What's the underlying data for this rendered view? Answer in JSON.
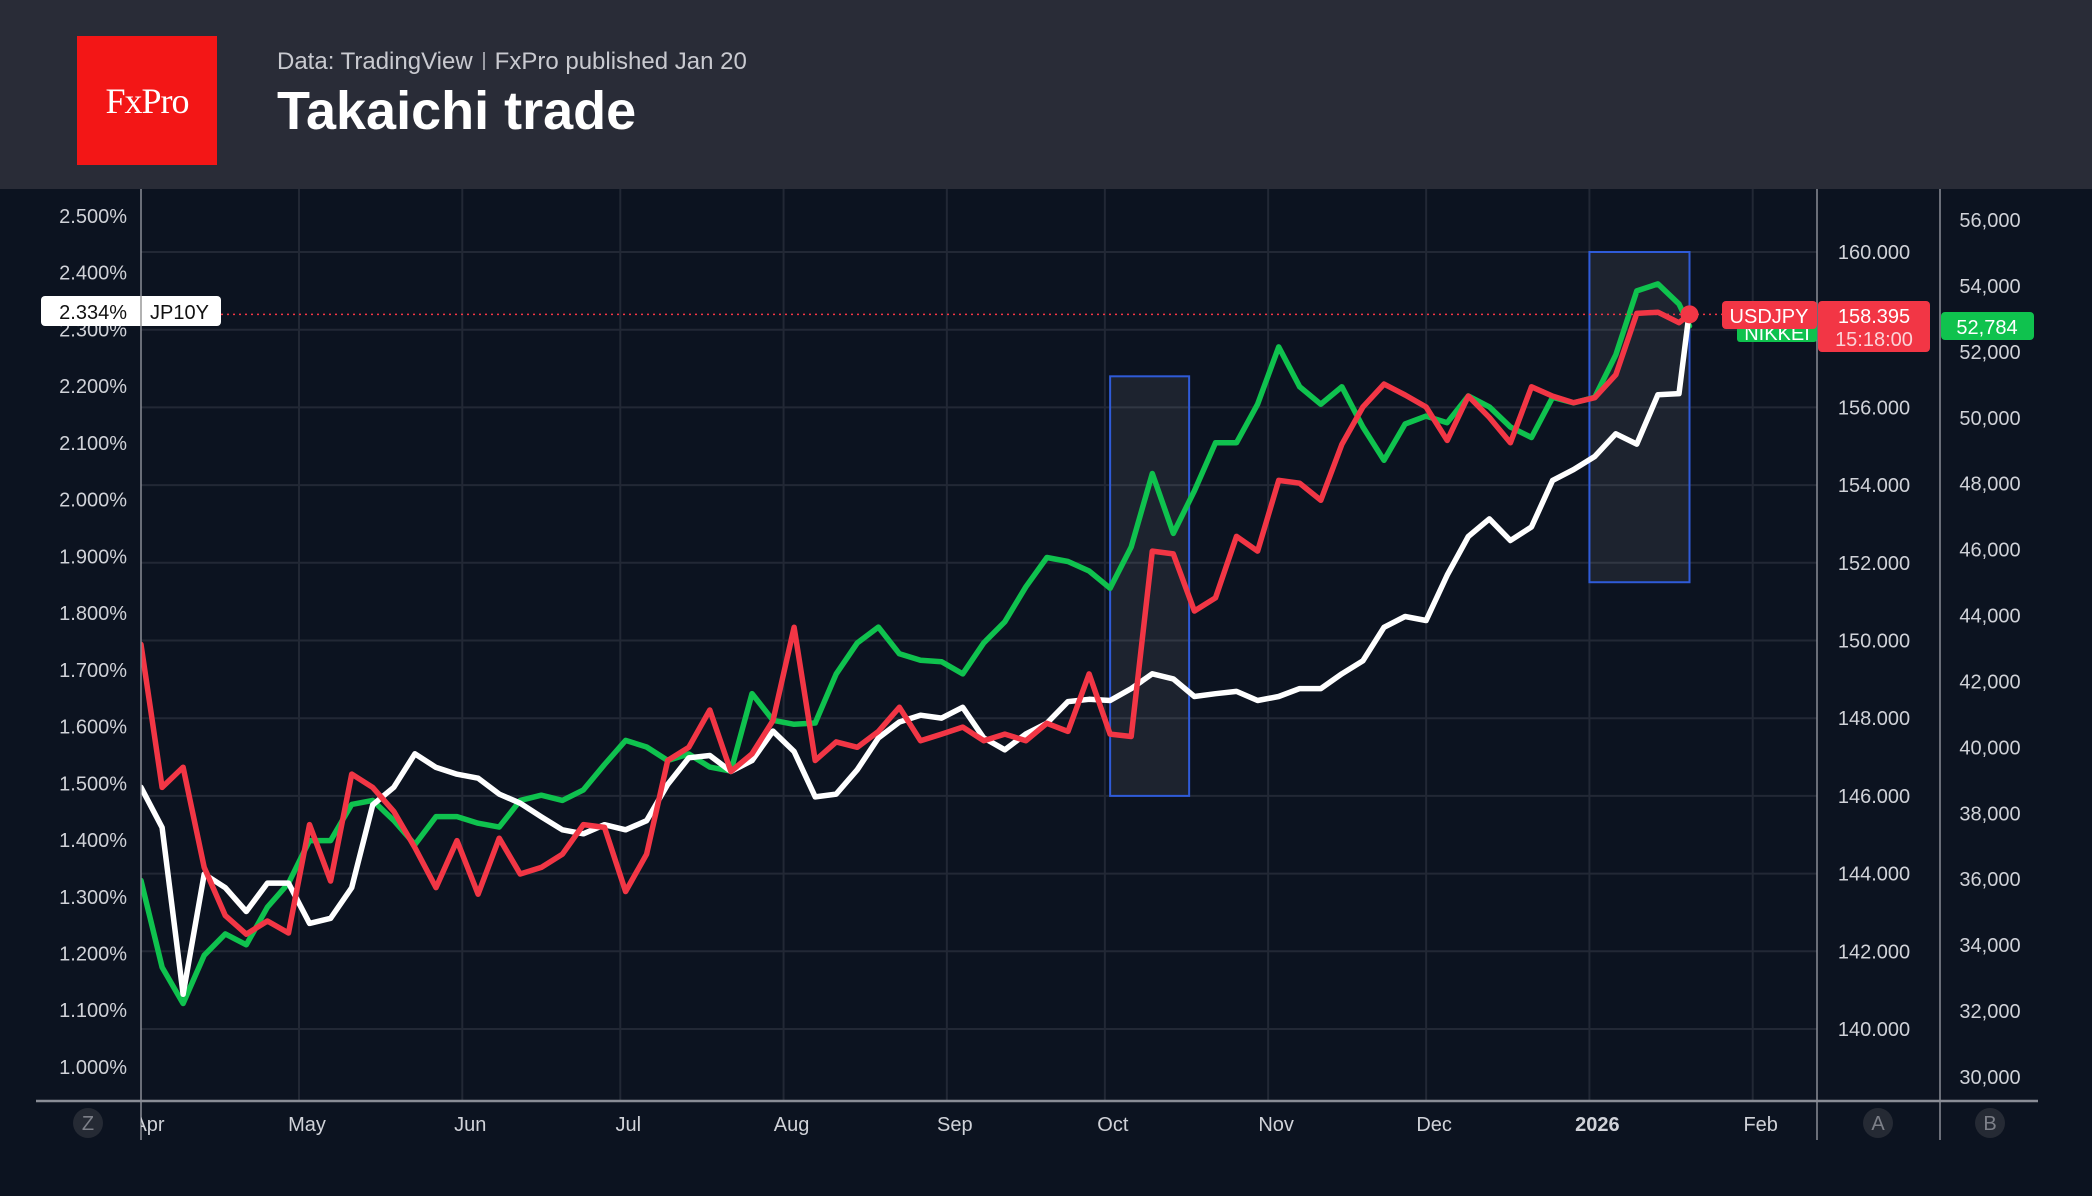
{
  "header": {
    "logo": "FxPro",
    "source": "Data: TradingView",
    "published": "FxPro published Jan 20",
    "title": "Takaichi trade"
  },
  "chart_data": {
    "type": "line",
    "title": "Takaichi trade",
    "grid": true,
    "x": [
      "2025-04-01",
      "2025-04-05",
      "2025-04-09",
      "2025-04-13",
      "2025-04-17",
      "2025-04-21",
      "2025-04-25",
      "2025-04-29",
      "2025-05-03",
      "2025-05-07",
      "2025-05-11",
      "2025-05-15",
      "2025-05-19",
      "2025-05-23",
      "2025-05-27",
      "2025-05-31",
      "2025-06-04",
      "2025-06-08",
      "2025-06-12",
      "2025-06-16",
      "2025-06-20",
      "2025-06-24",
      "2025-06-28",
      "2025-07-02",
      "2025-07-06",
      "2025-07-10",
      "2025-07-14",
      "2025-07-18",
      "2025-07-22",
      "2025-07-26",
      "2025-07-30",
      "2025-08-03",
      "2025-08-07",
      "2025-08-11",
      "2025-08-15",
      "2025-08-19",
      "2025-08-23",
      "2025-08-27",
      "2025-08-31",
      "2025-09-04",
      "2025-09-08",
      "2025-09-12",
      "2025-09-16",
      "2025-09-20",
      "2025-09-24",
      "2025-09-28",
      "2025-10-02",
      "2025-10-06",
      "2025-10-10",
      "2025-10-14",
      "2025-10-18",
      "2025-10-22",
      "2025-10-26",
      "2025-10-30",
      "2025-11-03",
      "2025-11-07",
      "2025-11-11",
      "2025-11-15",
      "2025-11-19",
      "2025-11-23",
      "2025-11-27",
      "2025-12-01",
      "2025-12-05",
      "2025-12-09",
      "2025-12-13",
      "2025-12-17",
      "2025-12-21",
      "2025-12-25",
      "2025-12-29",
      "2026-01-02",
      "2026-01-06",
      "2026-01-10",
      "2026-01-14",
      "2026-01-18",
      "2026-01-20"
    ],
    "x_ticks": [
      {
        "date": "2025-04-01",
        "label": "Apr"
      },
      {
        "date": "2025-05-01",
        "label": "May"
      },
      {
        "date": "2025-06-01",
        "label": "Jun"
      },
      {
        "date": "2025-07-01",
        "label": "Jul"
      },
      {
        "date": "2025-08-01",
        "label": "Aug"
      },
      {
        "date": "2025-09-01",
        "label": "Sep"
      },
      {
        "date": "2025-10-01",
        "label": "Oct"
      },
      {
        "date": "2025-11-01",
        "label": "Nov"
      },
      {
        "date": "2025-12-01",
        "label": "Dec"
      },
      {
        "date": "2026-01-01",
        "label": "2026",
        "bold": true
      },
      {
        "date": "2026-02-01",
        "label": "Feb"
      }
    ],
    "series": [
      {
        "name": "JP10Y",
        "axis": "left",
        "color": "#ffffff",
        "values": [
          1.493,
          1.422,
          1.128,
          1.34,
          1.316,
          1.274,
          1.324,
          1.324,
          1.253,
          1.262,
          1.316,
          1.462,
          1.493,
          1.552,
          1.528,
          1.516,
          1.509,
          1.481,
          1.465,
          1.441,
          1.418,
          1.411,
          1.427,
          1.418,
          1.434,
          1.498,
          1.545,
          1.549,
          1.521,
          1.54,
          1.592,
          1.556,
          1.476,
          1.481,
          1.524,
          1.58,
          1.608,
          1.62,
          1.615,
          1.634,
          1.58,
          1.559,
          1.587,
          1.606,
          1.644,
          1.648,
          1.646,
          1.667,
          1.693,
          1.684,
          1.653,
          1.658,
          1.662,
          1.646,
          1.653,
          1.667,
          1.667,
          1.693,
          1.716,
          1.775,
          1.794,
          1.787,
          1.867,
          1.935,
          1.966,
          1.928,
          1.952,
          2.034,
          2.053,
          2.076,
          2.116,
          2.098,
          2.185,
          2.187,
          2.334
        ],
        "last_label": "2.334%"
      },
      {
        "name": "USDJPY",
        "axis": "middle",
        "color": "#f23645",
        "values": [
          149.9,
          146.22,
          146.74,
          144.16,
          142.92,
          142.44,
          142.78,
          142.47,
          145.26,
          143.81,
          146.56,
          146.22,
          145.6,
          144.67,
          143.64,
          144.85,
          143.47,
          144.91,
          143.99,
          144.16,
          144.5,
          145.26,
          145.19,
          143.54,
          144.5,
          146.91,
          147.25,
          148.21,
          146.63,
          147.08,
          147.94,
          150.34,
          146.91,
          147.39,
          147.25,
          147.66,
          148.28,
          147.42,
          147.59,
          147.77,
          147.42,
          147.59,
          147.42,
          147.87,
          147.66,
          149.14,
          147.59,
          147.53,
          152.3,
          152.23,
          150.76,
          151.1,
          152.68,
          152.3,
          154.12,
          154.05,
          153.61,
          155.05,
          156.01,
          156.6,
          156.32,
          156.01,
          155.15,
          156.29,
          155.74,
          155.09,
          156.53,
          156.29,
          156.12,
          156.25,
          156.84,
          158.42,
          158.45,
          158.18,
          158.395
        ],
        "last_label": "158.395",
        "countdown": "15:18:00"
      },
      {
        "name": "NIKKEI",
        "axis": "right",
        "color": "#0fc24e",
        "values": [
          35960,
          33330,
          32230,
          33690,
          34340,
          34010,
          35150,
          35880,
          37170,
          37170,
          38270,
          38390,
          37780,
          37050,
          37900,
          37900,
          37700,
          37580,
          38390,
          38550,
          38390,
          38710,
          39480,
          40210,
          40010,
          39600,
          39800,
          39400,
          39280,
          41630,
          40820,
          40700,
          40740,
          42230,
          43170,
          43650,
          42840,
          42640,
          42600,
          42230,
          43170,
          43810,
          44870,
          45760,
          45640,
          45350,
          44830,
          46080,
          48310,
          46490,
          47780,
          49240,
          49240,
          50410,
          52150,
          50940,
          50410,
          50940,
          49720,
          48710,
          49810,
          50050,
          49850,
          50660,
          50330,
          49720,
          49400,
          50620,
          50450,
          50620,
          51910,
          53850,
          54060,
          53450,
          52784
        ],
        "last_label": "52,784"
      }
    ],
    "axes": {
      "left": {
        "range": [
          1.0,
          2.5
        ],
        "ticks": [
          2.5,
          2.4,
          2.3,
          2.2,
          2.1,
          2.0,
          1.9,
          1.8,
          1.7,
          1.6,
          1.5,
          1.4,
          1.3,
          1.2,
          1.1,
          1.0
        ],
        "labels": [
          "2.500%",
          "2.400%",
          "2.300%",
          "2.200%",
          "2.100%",
          "2.000%",
          "1.900%",
          "1.800%",
          "1.700%",
          "1.600%",
          "1.500%",
          "1.400%",
          "1.300%",
          "1.200%",
          "1.100%",
          "1.000%"
        ]
      },
      "middle": {
        "range": [
          140,
          160
        ],
        "ticks": [
          160,
          158,
          156,
          154,
          152,
          150,
          148,
          146,
          144,
          142,
          140
        ],
        "labels": [
          "160.000",
          "",
          "156.000",
          "154.000",
          "152.000",
          "150.000",
          "148.000",
          "146.000",
          "144.000",
          "142.000",
          "140.000"
        ]
      },
      "right": {
        "range": [
          30000,
          56000
        ],
        "ticks": [
          56000,
          54000,
          52000,
          50000,
          48000,
          46000,
          44000,
          42000,
          40000,
          38000,
          36000,
          34000,
          32000,
          30000
        ],
        "labels": [
          "56,000",
          "54,000",
          "52,000",
          "50,000",
          "48,000",
          "46,000",
          "44,000",
          "42,000",
          "40,000",
          "38,000",
          "36,000",
          "34,000",
          "32,000",
          "30,000"
        ]
      }
    },
    "highlights": [
      {
        "from": "2025-10-02",
        "to": "2025-10-17",
        "usdjpy_range": [
          146.0,
          156.8
        ]
      },
      {
        "from": "2026-01-01",
        "to": "2026-01-20",
        "usdjpy_range": [
          151.5,
          160.0
        ]
      }
    ]
  },
  "scale_buttons": {
    "left": "Z",
    "middle": "A",
    "right": "B"
  },
  "colors": {
    "header_bg": "#292c37",
    "chart_bg": "#0c1320",
    "grid": "#222835",
    "highlight_border": "#2f5bd8",
    "logo_bg": "#f31616"
  }
}
